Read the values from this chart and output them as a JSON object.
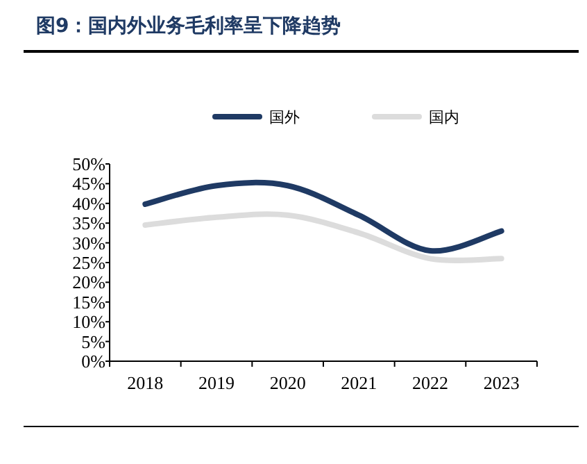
{
  "chart_data": {
    "type": "line",
    "title": "图9：国内外业务毛利率呈下降趋势",
    "categories": [
      "2018",
      "2019",
      "2020",
      "2021",
      "2022",
      "2023"
    ],
    "series": [
      {
        "name": "国外",
        "color": "#1f3a64",
        "values": [
          39.8,
          44.5,
          44.5,
          37,
          28,
          33
        ]
      },
      {
        "name": "国内",
        "color": "#dcdcdc",
        "values": [
          34.5,
          36.5,
          37,
          32.5,
          26,
          26
        ]
      }
    ],
    "ylim": [
      0,
      50
    ],
    "yticks": [
      {
        "value": 0,
        "label": "0%"
      },
      {
        "value": 5,
        "label": "5%"
      },
      {
        "value": 10,
        "label": "10%"
      },
      {
        "value": 15,
        "label": "15%"
      },
      {
        "value": 20,
        "label": "20%"
      },
      {
        "value": 25,
        "label": "25%"
      },
      {
        "value": 30,
        "label": "30%"
      },
      {
        "value": 35,
        "label": "35%"
      },
      {
        "value": 40,
        "label": "40%"
      },
      {
        "value": 45,
        "label": "45%"
      },
      {
        "value": 50,
        "label": "50%"
      }
    ],
    "grid": false,
    "legend": "top",
    "marker": "none",
    "line_style": "solid"
  }
}
